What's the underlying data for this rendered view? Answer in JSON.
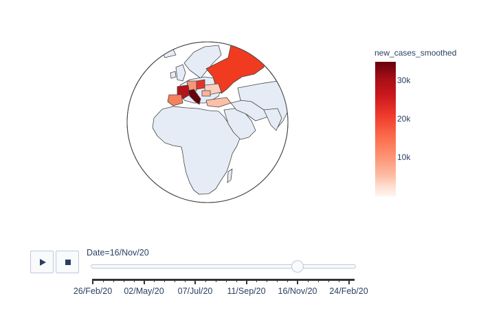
{
  "colorbar": {
    "title": "new_cases_smoothed",
    "ticks": [
      "30k",
      "20k",
      "10k"
    ],
    "colorscale": [
      "#fff5f0",
      "#fee0d2",
      "#fcbba1",
      "#fc9272",
      "#fb6a4a",
      "#ef3b2c",
      "#cb181d",
      "#a50f15",
      "#67000d"
    ]
  },
  "map": {
    "projection": "orthographic",
    "land_color": "#e5ecf6",
    "border_color": "#444444",
    "highlighted_regions": [
      {
        "name": "Russia",
        "color": "#f03b20"
      },
      {
        "name": "France",
        "color": "#b4131a"
      },
      {
        "name": "Italy",
        "color": "#67000d"
      },
      {
        "name": "Spain",
        "color": "#f6805d"
      },
      {
        "name": "Poland",
        "color": "#e63328"
      },
      {
        "name": "Germany",
        "color": "#f89576"
      },
      {
        "name": "Ukraine",
        "color": "#fcd0bd"
      },
      {
        "name": "Turkey",
        "color": "#fcc0a8"
      },
      {
        "name": "Romania",
        "color": "#fbb39b"
      }
    ]
  },
  "controls": {
    "play_icon": "play-icon",
    "stop_icon": "stop-icon"
  },
  "slider": {
    "current_label": "Date=16/Nov/20",
    "position_fraction": 0.78,
    "tick_labels": [
      "26/Feb/20",
      "02/May/20",
      "07/Jul/20",
      "11/Sep/20",
      "16/Nov/20",
      "24/Feb/20"
    ]
  }
}
